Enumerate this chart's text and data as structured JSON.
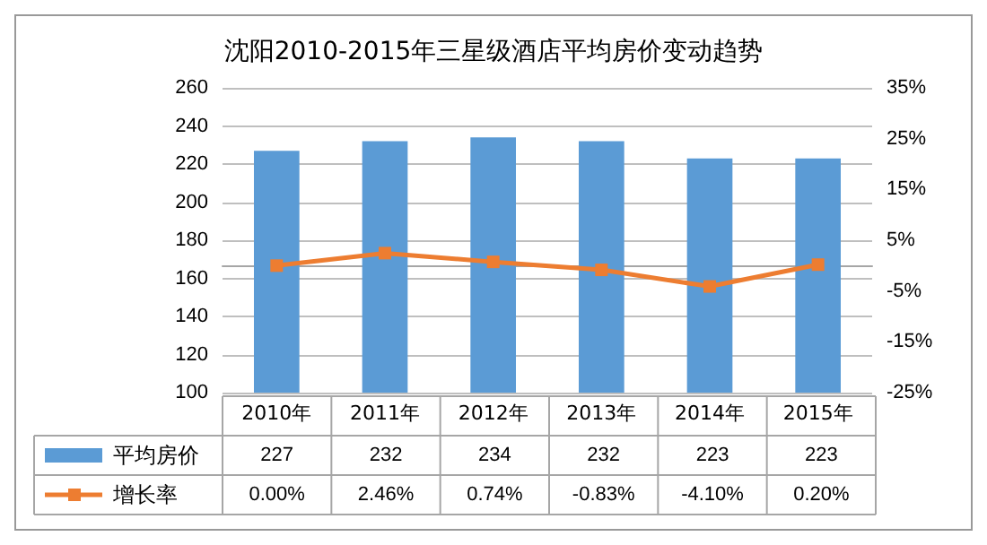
{
  "chart_data": {
    "type": "bar",
    "title": "沈阳2010-2015年三星级酒店平均房价变动趋势",
    "categories": [
      "2010年",
      "2011年",
      "2012年",
      "2013年",
      "2014年",
      "2015年"
    ],
    "series": [
      {
        "name": "平均房价",
        "color": "#5b9bd5",
        "values": [
          227,
          232,
          234,
          232,
          223,
          223
        ],
        "value_labels": [
          "227",
          "232",
          "234",
          "232",
          "223",
          "223"
        ]
      },
      {
        "name": "增长率",
        "type": "line",
        "axis": "y2",
        "color": "#ed7d31",
        "values": [
          0.0,
          2.46,
          0.74,
          -0.83,
          -4.1,
          0.2
        ],
        "value_labels": [
          "0.00%",
          "2.46%",
          "0.74%",
          "-0.83%",
          "-4.10%",
          "0.20%"
        ]
      }
    ],
    "ylim": [
      100,
      260
    ],
    "yticks": [
      100,
      120,
      140,
      160,
      180,
      200,
      220,
      240,
      260
    ],
    "y2lim": [
      -25,
      35
    ],
    "y2ticks": [
      {
        "value": -25,
        "label": "-25%"
      },
      {
        "value": -15,
        "label": "-15%"
      },
      {
        "value": -5,
        "label": "-5%"
      },
      {
        "value": 5,
        "label": "5%"
      },
      {
        "value": 15,
        "label": "15%"
      },
      {
        "value": 25,
        "label": "25%"
      },
      {
        "value": 35,
        "label": "35%"
      }
    ],
    "grid": "y",
    "legend": "bottom",
    "marker": "square",
    "line_style": "solid"
  }
}
